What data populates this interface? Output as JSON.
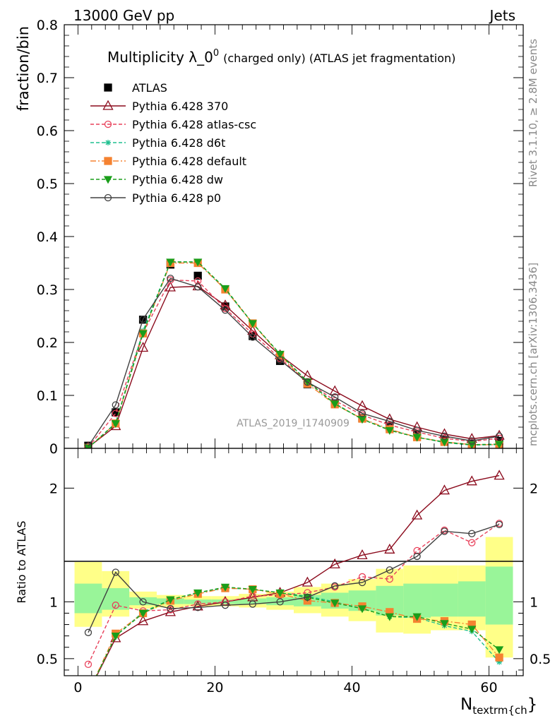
{
  "header": {
    "left": "13000 GeV pp",
    "right": "Jets"
  },
  "side_labels": {
    "top": "Rivet 3.1.10, ≥ 2.8M events",
    "bottom": "mcplots.cern.ch [arXiv:1306.3436]"
  },
  "chart_data": [
    {
      "type": "line",
      "title_main": "Multiplicity λ_0",
      "title_sup": "0",
      "title_rest": "(charged only) (ATLAS jet fragmentation)",
      "ylabel": "fraction/bin",
      "watermark": "ATLAS_2019_I1740909",
      "ylim": [
        0,
        0.8
      ],
      "xlim": [
        -2,
        65
      ],
      "yticks": [
        "0",
        "0.1",
        "0.2",
        "0.3",
        "0.4",
        "0.5",
        "0.6",
        "0.7",
        "0.8"
      ],
      "x": [
        1.5,
        5.5,
        9.5,
        13.5,
        17.5,
        21.5,
        25.5,
        29.5,
        33.5,
        37.5,
        41.5,
        45.5,
        49.5,
        53.5,
        57.5,
        61.5
      ],
      "legend_position": "top-left",
      "series": [
        {
          "name": "ATLAS",
          "color": "#000000",
          "marker": "square",
          "line": "none",
          "values": [
            0.005,
            0.068,
            0.243,
            0.347,
            0.326,
            0.268,
            0.212,
            0.165,
            0.121,
            0.085,
            0.057,
            0.04,
            0.025,
            0.015,
            0.009,
            0.014
          ]
        },
        {
          "name": "Pythia 6.428 370",
          "color": "#8b0a1c",
          "marker": "triangle-open",
          "line": "solid",
          "values": [
            0.002,
            0.042,
            0.19,
            0.304,
            0.306,
            0.27,
            0.222,
            0.176,
            0.137,
            0.108,
            0.08,
            0.055,
            0.04,
            0.027,
            0.018,
            0.024
          ]
        },
        {
          "name": "Pythia 6.428 atlas-csc",
          "color": "#e8405a",
          "marker": "circle-open",
          "line": "dashed",
          "values": [
            0.002,
            0.066,
            0.218,
            0.318,
            0.316,
            0.264,
            0.216,
            0.17,
            0.126,
            0.09,
            0.063,
            0.044,
            0.031,
            0.019,
            0.013,
            0.019
          ]
        },
        {
          "name": "Pythia 6.428 d6t",
          "color": "#1fbf8f",
          "marker": "star",
          "line": "dashed",
          "values": [
            0.001,
            0.048,
            0.222,
            0.352,
            0.352,
            0.3,
            0.236,
            0.178,
            0.126,
            0.085,
            0.055,
            0.035,
            0.021,
            0.011,
            0.006,
            0.007
          ]
        },
        {
          "name": "Pythia 6.428 default",
          "color": "#f58231",
          "marker": "square",
          "line": "dashdot",
          "values": [
            0.001,
            0.047,
            0.217,
            0.35,
            0.35,
            0.3,
            0.236,
            0.176,
            0.122,
            0.083,
            0.056,
            0.036,
            0.021,
            0.012,
            0.007,
            0.007
          ]
        },
        {
          "name": "Pythia 6.428 dw",
          "color": "#1a9e1a",
          "marker": "triangle-down",
          "line": "dashed",
          "values": [
            0.001,
            0.047,
            0.217,
            0.352,
            0.352,
            0.302,
            0.236,
            0.178,
            0.126,
            0.084,
            0.055,
            0.034,
            0.021,
            0.012,
            0.007,
            0.008
          ]
        },
        {
          "name": "Pythia 6.428 p0",
          "color": "#404040",
          "marker": "circle-open",
          "line": "solid",
          "values": [
            0.004,
            0.082,
            0.244,
            0.321,
            0.305,
            0.261,
            0.21,
            0.167,
            0.125,
            0.097,
            0.066,
            0.051,
            0.034,
            0.023,
            0.014,
            0.023
          ]
        }
      ]
    },
    {
      "type": "line",
      "ylabel": "Ratio to ATLAS",
      "xlabel_main": "N",
      "xlabel_sub": "textrm{ch",
      "xlabel_end": "}",
      "ylim": [
        0.35,
        2.35
      ],
      "xticks": [
        "0",
        "20",
        "40",
        "60"
      ],
      "yticks_left": [
        "0.5",
        "1",
        "2"
      ],
      "yticks_right": [
        "0.5",
        "1",
        "2"
      ],
      "x": [
        1.5,
        5.5,
        9.5,
        13.5,
        17.5,
        21.5,
        25.5,
        29.5,
        33.5,
        37.5,
        41.5,
        45.5,
        49.5,
        53.5,
        57.5,
        61.5
      ],
      "band_total": [
        [
          0.78,
          1.35
        ],
        [
          0.87,
          1.27
        ],
        [
          0.94,
          1.09
        ],
        [
          0.95,
          1.06
        ],
        [
          0.96,
          1.05
        ],
        [
          0.96,
          1.05
        ],
        [
          0.95,
          1.07
        ],
        [
          0.93,
          1.09
        ],
        [
          0.9,
          1.13
        ],
        [
          0.87,
          1.16
        ],
        [
          0.83,
          1.2
        ],
        [
          0.73,
          1.29
        ],
        [
          0.72,
          1.32
        ],
        [
          0.75,
          1.32
        ],
        [
          0.75,
          1.32
        ],
        [
          0.51,
          1.57
        ]
      ],
      "band_stat": [
        [
          0.9,
          1.16
        ],
        [
          0.93,
          1.12
        ],
        [
          0.97,
          1.04
        ],
        [
          0.98,
          1.03
        ],
        [
          0.98,
          1.02
        ],
        [
          0.98,
          1.02
        ],
        [
          0.98,
          1.03
        ],
        [
          0.97,
          1.04
        ],
        [
          0.96,
          1.06
        ],
        [
          0.94,
          1.08
        ],
        [
          0.92,
          1.1
        ],
        [
          0.88,
          1.14
        ],
        [
          0.86,
          1.16
        ],
        [
          0.87,
          1.16
        ],
        [
          0.87,
          1.18
        ],
        [
          0.8,
          1.31
        ]
      ],
      "series": [
        {
          "name": "Pythia 6.428 370",
          "color": "#8b0a1c",
          "marker": "triangle-open",
          "line": "solid",
          "values": [
            0.2,
            0.68,
            0.83,
            0.91,
            0.96,
            1.0,
            1.04,
            1.08,
            1.17,
            1.33,
            1.41,
            1.46,
            1.76,
            1.98,
            2.06,
            2.11
          ]
        },
        {
          "name": "Pythia 6.428 atlas-csc",
          "color": "#e8405a",
          "marker": "circle-open",
          "line": "dashed",
          "values": [
            0.45,
            0.97,
            0.92,
            0.93,
            0.98,
            1.0,
            1.05,
            1.06,
            1.08,
            1.13,
            1.22,
            1.2,
            1.45,
            1.63,
            1.52,
            1.69
          ]
        },
        {
          "name": "Pythia 6.428 d6t",
          "color": "#1fbf8f",
          "marker": "star",
          "line": "dashed",
          "values": [
            0.2,
            0.7,
            0.91,
            1.02,
            1.08,
            1.12,
            1.11,
            1.08,
            1.05,
            1.0,
            0.94,
            0.87,
            0.86,
            0.79,
            0.74,
            0.47
          ]
        },
        {
          "name": "Pythia 6.428 default",
          "color": "#f58231",
          "marker": "square",
          "line": "dashdot",
          "values": [
            0.2,
            0.72,
            0.9,
            1.01,
            1.07,
            1.12,
            1.11,
            1.07,
            1.01,
            0.99,
            0.96,
            0.91,
            0.85,
            0.83,
            0.8,
            0.51
          ]
        },
        {
          "name": "Pythia 6.428 dw",
          "color": "#1a9e1a",
          "marker": "triangle-down",
          "line": "dashed",
          "values": [
            0.2,
            0.7,
            0.9,
            1.02,
            1.08,
            1.13,
            1.11,
            1.08,
            1.04,
            0.99,
            0.94,
            0.87,
            0.87,
            0.81,
            0.76,
            0.58
          ]
        },
        {
          "name": "Pythia 6.428 p0",
          "color": "#404040",
          "marker": "circle-open",
          "line": "solid",
          "values": [
            0.73,
            1.26,
            1.0,
            0.94,
            0.95,
            0.97,
            0.98,
            1.0,
            1.04,
            1.14,
            1.17,
            1.28,
            1.4,
            1.62,
            1.6,
            1.68
          ]
        }
      ]
    }
  ]
}
